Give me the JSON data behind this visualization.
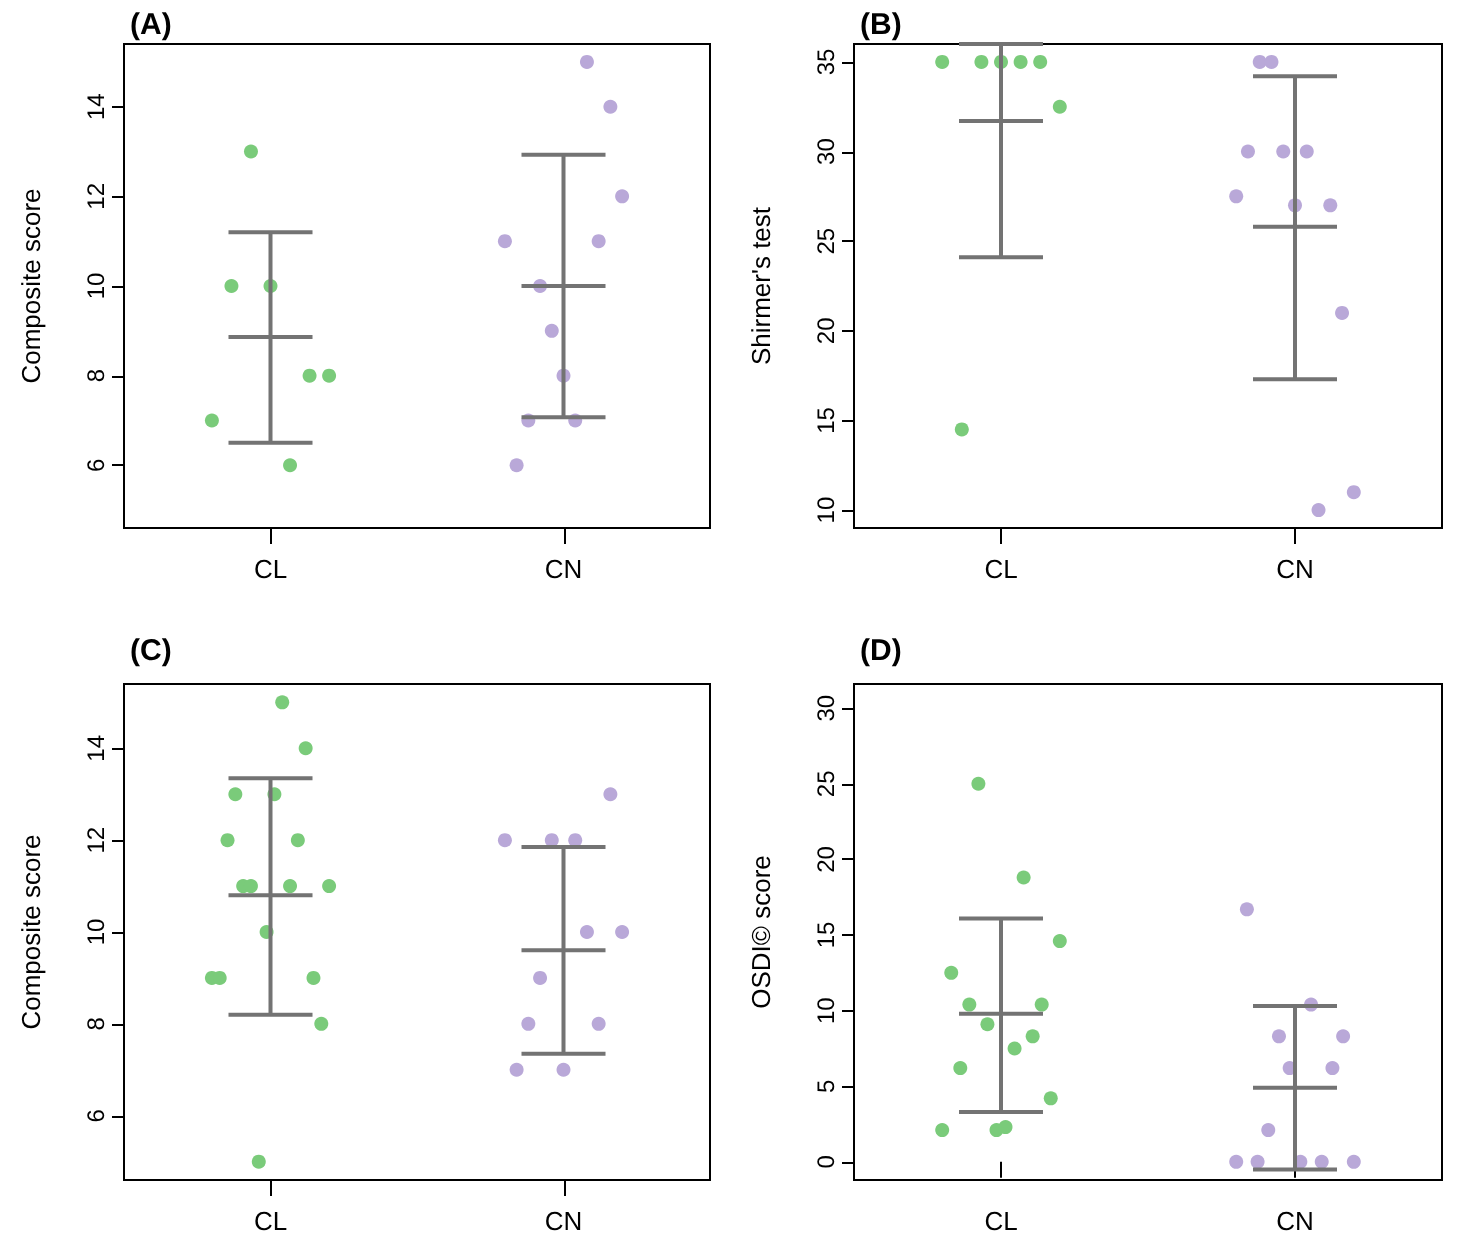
{
  "chart_data": [
    {
      "type": "scatter",
      "title": "(A)",
      "ylabel": "Composite score",
      "categories": [
        "CL",
        "CN"
      ],
      "ylim": [
        4.6,
        15.4
      ],
      "yticks": [
        6,
        8,
        10,
        12,
        14
      ],
      "grid": false,
      "marker": "circle",
      "series": [
        {
          "type": "scatter",
          "color": "#7acb7a",
          "x": [
            "CL",
            "CL",
            "CL",
            "CL",
            "CL",
            "CL",
            "CL"
          ],
          "values": [
            7,
            10,
            13,
            10,
            6,
            8,
            8
          ]
        },
        {
          "type": "scatter",
          "color": "#b9a8d8",
          "x": [
            "CN",
            "CN",
            "CN",
            "CN",
            "CN",
            "CN",
            "CN",
            "CN",
            "CN",
            "CN",
            "CN"
          ],
          "values": [
            11,
            6,
            7,
            10,
            9,
            8,
            7,
            15,
            11,
            14,
            12
          ]
        },
        {
          "type": "box",
          "color": "#737373",
          "boxes": [
            {
              "low": 6.5,
              "q1": 8.86,
              "median": 8.86,
              "q3": 8.86,
              "high": 11.2
            },
            {
              "low": 7.07,
              "q1": 10,
              "median": 10,
              "q3": 10,
              "high": 12.93
            }
          ]
        }
      ]
    },
    {
      "type": "scatter",
      "title": "(B)",
      "ylabel": "Shirmer's test",
      "categories": [
        "CL",
        "CN"
      ],
      "ylim": [
        9,
        36
      ],
      "yticks": [
        10,
        15,
        20,
        25,
        30,
        35
      ],
      "grid": false,
      "marker": "circle",
      "series": [
        {
          "type": "scatter",
          "color": "#7acb7a",
          "x": [
            "CL",
            "CL",
            "CL",
            "CL",
            "CL",
            "CL",
            "CL"
          ],
          "values": [
            35,
            14.5,
            35,
            35,
            35,
            35,
            32.5
          ]
        },
        {
          "type": "scatter",
          "color": "#b9a8d8",
          "x": [
            "CN",
            "CN",
            "CN",
            "CN",
            "CN",
            "CN",
            "CN",
            "CN",
            "CN",
            "CN",
            "CN"
          ],
          "values": [
            27.5,
            30,
            35,
            35,
            30,
            27,
            30,
            10,
            27,
            21,
            11
          ]
        },
        {
          "type": "box",
          "color": "#737373",
          "boxes": [
            {
              "low": 24.1,
              "q1": 31.7,
              "median": 31.7,
              "q3": 31.7,
              "high": 36
            },
            {
              "low": 17.3,
              "q1": 25.8,
              "median": 25.8,
              "q3": 25.8,
              "high": 34.2
            }
          ]
        }
      ]
    },
    {
      "type": "scatter",
      "title": "(C)",
      "ylabel": "Composite score",
      "categories": [
        "CL",
        "CN"
      ],
      "ylim": [
        4.6,
        15.4
      ],
      "yticks": [
        6,
        8,
        10,
        12,
        14
      ],
      "grid": false,
      "marker": "circle",
      "series": [
        {
          "type": "scatter",
          "color": "#7acb7a",
          "x": [
            "CL",
            "CL",
            "CL",
            "CL",
            "CL",
            "CL",
            "CL",
            "CL",
            "CL",
            "CL",
            "CL",
            "CL",
            "CL",
            "CL",
            "CL",
            "CL"
          ],
          "values": [
            9,
            9,
            12,
            13,
            11,
            11,
            5,
            10,
            13,
            15,
            11,
            12,
            14,
            9,
            8,
            11
          ]
        },
        {
          "type": "scatter",
          "color": "#b9a8d8",
          "x": [
            "CN",
            "CN",
            "CN",
            "CN",
            "CN",
            "CN",
            "CN",
            "CN",
            "CN",
            "CN",
            "CN"
          ],
          "values": [
            12,
            7,
            8,
            9,
            12,
            7,
            12,
            10,
            8,
            13,
            10
          ]
        },
        {
          "type": "box",
          "color": "#737373",
          "boxes": [
            {
              "low": 8.2,
              "q1": 10.8,
              "median": 10.8,
              "q3": 10.8,
              "high": 13.35
            },
            {
              "low": 7.35,
              "q1": 9.6,
              "median": 9.6,
              "q3": 9.6,
              "high": 11.85
            }
          ]
        }
      ]
    },
    {
      "type": "scatter",
      "title": "(D)",
      "ylabel": "OSDI© score",
      "categories": [
        "CL",
        "CN"
      ],
      "ylim": [
        -1.2,
        31.6
      ],
      "yticks": [
        0,
        5,
        10,
        15,
        20,
        25,
        30
      ],
      "grid": false,
      "marker": "circle",
      "series": [
        {
          "type": "scatter",
          "color": "#7acb7a",
          "x": [
            "CL",
            "CL",
            "CL",
            "CL",
            "CL",
            "CL",
            "CL",
            "CL",
            "CL",
            "CL",
            "CL",
            "CL",
            "CL",
            "CL"
          ],
          "values": [
            2.1,
            12.5,
            6.2,
            10.4,
            25,
            9.1,
            2.1,
            2.3,
            7.5,
            18.8,
            8.3,
            10.4,
            4.2,
            14.6
          ]
        },
        {
          "type": "scatter",
          "color": "#b9a8d8",
          "x": [
            "CN",
            "CN",
            "CN",
            "CN",
            "CN",
            "CN",
            "CN",
            "CN",
            "CN",
            "CN",
            "CN",
            "CN"
          ],
          "values": [
            0,
            16.7,
            0,
            2.1,
            8.3,
            6.2,
            0,
            10.4,
            0,
            6.2,
            8.3,
            0
          ]
        },
        {
          "type": "box",
          "color": "#737373",
          "boxes": [
            {
              "low": 3.3,
              "q1": 9.8,
              "median": 9.8,
              "q3": 9.8,
              "high": 16.1
            },
            {
              "low": -0.5,
              "q1": 4.9,
              "median": 4.9,
              "q3": 4.9,
              "high": 10.3
            }
          ]
        }
      ]
    }
  ]
}
